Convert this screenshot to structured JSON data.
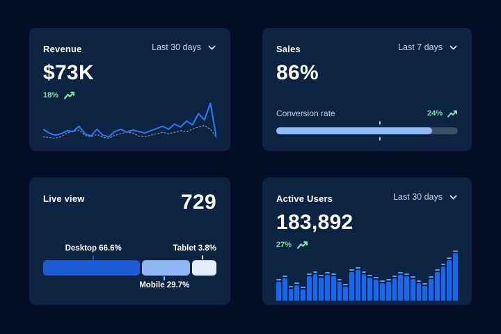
{
  "colors": {
    "page_bg": "#030E26",
    "card_bg": "#0C2342",
    "title_text": "#FFFFFF",
    "secondary_text": "#C8D3E2",
    "positive_green": "#7DE2A3",
    "line_blue": "#2E74F6",
    "line_previous_gray": "#8C9AAE",
    "bar_blue": "#1568F0",
    "bar_cap_blue": "#5D9AF7",
    "progress_fill": "#90BBF8",
    "progress_track": "#3C4E63",
    "stacked_desktop": "#1B5BD4",
    "stacked_mobile": "#8FB7F4",
    "stacked_tablet": "#E3EDFC"
  },
  "cards": {
    "revenue": {
      "title": "Revenue",
      "period": "Last 30 days",
      "value": "$73K",
      "change": "18%"
    },
    "sales": {
      "title": "Sales",
      "period": "Last 7 days",
      "value": "86%",
      "metric_label": "Conversion rate",
      "change": "24%"
    },
    "live_view": {
      "title": "Live view",
      "value": "729"
    },
    "active_users": {
      "title": "Active Users",
      "period": "Last 30 days",
      "value": "183,892",
      "change": "27%"
    }
  },
  "chart_data": {
    "revenue": {
      "type": "line",
      "title": "Revenue",
      "period": "Last 30 days",
      "headline_value": "$73K",
      "change_pct": 18,
      "axes_visible": false,
      "grid": false,
      "values_unit": "relative-percent-of-max (no axis labels shown)",
      "series": [
        {
          "name": "current",
          "style": "solid",
          "color": "#2E74F6",
          "values": [
            30,
            20,
            14,
            18,
            26,
            24,
            38,
            18,
            12,
            30,
            14,
            10,
            24,
            30,
            22,
            28,
            24,
            20,
            26,
            32,
            38,
            30,
            44,
            36,
            52,
            42,
            72,
            55,
            100,
            8
          ]
        },
        {
          "name": "previous",
          "style": "dashed",
          "color": "#8C9AAE",
          "values": [
            10,
            8,
            6,
            10,
            20,
            24,
            28,
            14,
            10,
            16,
            8,
            6,
            14,
            18,
            22,
            20,
            12,
            10,
            14,
            18,
            22,
            18,
            22,
            26,
            24,
            30,
            36,
            40,
            30,
            10
          ]
        }
      ]
    },
    "sales": {
      "type": "progress",
      "title": "Sales",
      "period": "Last 7 days",
      "value_pct": 86,
      "metric_label": "Conversion rate",
      "change_pct": 24,
      "marker_pct": 57,
      "fill_color": "#90BBF8",
      "track_color": "#3C4E63"
    },
    "live_view": {
      "type": "stacked-bar",
      "title": "Live view",
      "total": 729,
      "segments": [
        {
          "name": "Desktop",
          "value_pct": 66.6,
          "label": "Desktop 66.6%",
          "color": "#1B5BD4",
          "display_pct": 56,
          "tick_pct": 29,
          "label_position": "top"
        },
        {
          "name": "Mobile",
          "value_pct": 29.7,
          "label": "Mobile 29.7%",
          "color": "#8FB7F4",
          "display_pct": 27.5,
          "tick_pct": 70,
          "label_position": "bottom"
        },
        {
          "name": "Tablet",
          "value_pct": 3.8,
          "label": "Tablet 3.8%",
          "color": "#E3EDFC",
          "display_pct": 14,
          "tick_pct": 92,
          "label_position": "top-right"
        }
      ]
    },
    "active_users": {
      "type": "bar",
      "title": "Active Users",
      "period": "Last 30 days",
      "headline_value": "183,892",
      "change_pct": 27,
      "axes_visible": false,
      "values_unit": "relative-percent-of-max (no axis labels shown)",
      "bar_color": "#1568F0",
      "cap_color": "#5D9AF7",
      "values": [
        34,
        42,
        18,
        26,
        16,
        46,
        52,
        44,
        50,
        46,
        34,
        22,
        56,
        62,
        52,
        44,
        38,
        30,
        34,
        42,
        50,
        46,
        40,
        30,
        24,
        40,
        56,
        70,
        84,
        100
      ]
    }
  }
}
